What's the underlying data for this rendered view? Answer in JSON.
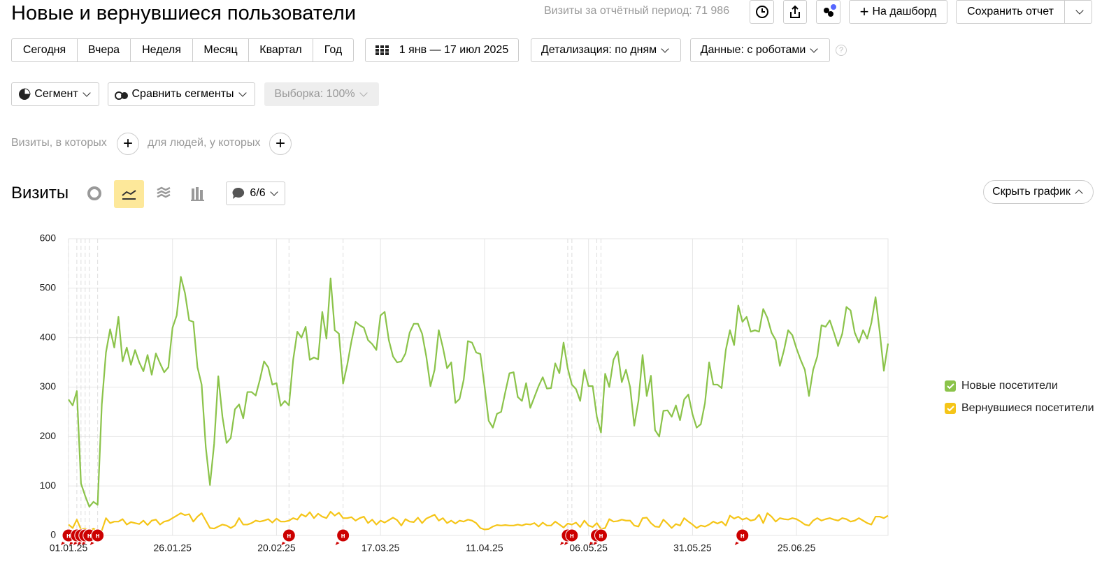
{
  "header": {
    "title": "Новые и вернувшиеся пользователи",
    "visits_total": "Визиты за отчётный период: 71 986",
    "add_dashboard": "На дашборд",
    "save_report": "Сохранить отчет"
  },
  "period_buttons": [
    "Сегодня",
    "Вчера",
    "Неделя",
    "Месяц",
    "Квартал",
    "Год"
  ],
  "date_range": "1 янв — 17 июл 2025",
  "detail": "Детализация: по дням",
  "data_mode": "Данные: с роботами",
  "segment": "Сегмент",
  "compare": "Сравнить сегменты",
  "sample": "Выборка: 100%",
  "filter": {
    "visits_where": "Визиты, в которых",
    "people_where": "для людей, у которых"
  },
  "metric_title": "Визиты",
  "notes_count": "6/6",
  "hide_chart": "Скрыть график",
  "chart_data": {
    "type": "line",
    "grid": true,
    "legend": "right",
    "xlim": [
      0,
      197
    ],
    "xticks": [
      {
        "value": 0,
        "label": "01.01.25"
      },
      {
        "value": 25,
        "label": "26.01.25"
      },
      {
        "value": 50,
        "label": "20.02.25"
      },
      {
        "value": 75,
        "label": "17.03.25"
      },
      {
        "value": 100,
        "label": "11.04.25"
      },
      {
        "value": 125,
        "label": "06.05.25"
      },
      {
        "value": 150,
        "label": "31.05.25"
      },
      {
        "value": 175,
        "label": "25.06.25"
      }
    ],
    "ylim": [
      0,
      600
    ],
    "yticks": [
      0,
      100,
      200,
      300,
      400,
      500,
      600
    ],
    "series": [
      {
        "name": "Новые посетители",
        "color": "#8bc34a",
        "values": [
          275,
          263,
          292,
          105,
          80,
          58,
          68,
          62,
          265,
          370,
          417,
          380,
          442,
          352,
          380,
          345,
          375,
          350,
          332,
          365,
          325,
          368,
          348,
          330,
          340,
          420,
          445,
          523,
          490,
          435,
          432,
          340,
          305,
          178,
          102,
          185,
          322,
          240,
          187,
          197,
          255,
          265,
          237,
          290,
          290,
          283,
          315,
          352,
          340,
          305,
          308,
          262,
          272,
          263,
          355,
          412,
          400,
          422,
          355,
          360,
          356,
          452,
          398,
          520,
          415,
          408,
          307,
          345,
          392,
          432,
          425,
          420,
          395,
          387,
          375,
          445,
          452,
          395,
          362,
          350,
          352,
          368,
          410,
          428,
          428,
          408,
          362,
          302,
          335,
          415,
          380,
          338,
          350,
          268,
          276,
          315,
          393,
          390,
          370,
          367,
          302,
          232,
          218,
          246,
          250,
          290,
          328,
          330,
          280,
          272,
          308,
          258,
          280,
          302,
          320,
          297,
          298,
          348,
          328,
          390,
          338,
          305,
          296,
          272,
          335,
          302,
          302,
          240,
          208,
          327,
          300,
          355,
          372,
          310,
          335,
          300,
          222,
          272,
          365,
          282,
          323,
          213,
          200,
          252,
          253,
          240,
          263,
          233,
          275,
          285,
          245,
          218,
          225,
          268,
          350,
          305,
          305,
          298,
          375,
          415,
          385,
          465,
          432,
          442,
          412,
          415,
          412,
          458,
          440,
          410,
          395,
          343,
          375,
          415,
          405,
          378,
          355,
          335,
          282,
          335,
          362,
          425,
          422,
          435,
          410,
          383,
          408,
          462,
          455,
          410,
          390,
          415,
          398,
          430,
          482,
          412,
          333,
          388
        ]
      },
      {
        "name": "Вернувшиеся посетители",
        "color": "#f5c518",
        "values": [
          22,
          15,
          32,
          12,
          14,
          8,
          14,
          8,
          10,
          35,
          25,
          28,
          28,
          33,
          22,
          27,
          25,
          23,
          30,
          21,
          30,
          32,
          22,
          28,
          30,
          35,
          40,
          45,
          41,
          43,
          28,
          38,
          45,
          30,
          15,
          14,
          18,
          22,
          20,
          15,
          20,
          35,
          22,
          22,
          25,
          30,
          28,
          30,
          33,
          26,
          34,
          28,
          28,
          30,
          35,
          32,
          43,
          38,
          47,
          35,
          44,
          38,
          35,
          48,
          40,
          46,
          35,
          35,
          37,
          30,
          35,
          38,
          25,
          32,
          22,
          30,
          26,
          31,
          36,
          31,
          20,
          33,
          28,
          27,
          36,
          25,
          34,
          38,
          42,
          30,
          35,
          25,
          30,
          24,
          30,
          28,
          32,
          30,
          25,
          15,
          12,
          13,
          18,
          21,
          20,
          21,
          20,
          20,
          22,
          20,
          23,
          22,
          25,
          18,
          26,
          20,
          20,
          28,
          22,
          16,
          24,
          22,
          26,
          17,
          30,
          20,
          17,
          25,
          13,
          15,
          33,
          28,
          29,
          32,
          30,
          30,
          20,
          18,
          35,
          36,
          25,
          18,
          17,
          32,
          24,
          15,
          23,
          20,
          35,
          28,
          22,
          15,
          20,
          18,
          22,
          28,
          24,
          28,
          20,
          40,
          34,
          38,
          32,
          35,
          30,
          32,
          42,
          25,
          45,
          38,
          28,
          35,
          33,
          32,
          35,
          33,
          28,
          22,
          20,
          30,
          35,
          30,
          33,
          35,
          32,
          30,
          35,
          33,
          28,
          30,
          35,
          30,
          25,
          22,
          38,
          38,
          35,
          40
        ]
      }
    ],
    "annotations": [
      {
        "x": 0,
        "label": "н"
      },
      {
        "x": 2,
        "label": "н"
      },
      {
        "x": 3,
        "label": "н"
      },
      {
        "x": 4,
        "label": "н"
      },
      {
        "x": 5,
        "label": "н"
      },
      {
        "x": 7,
        "label": "н"
      },
      {
        "x": 53,
        "label": "н"
      },
      {
        "x": 66,
        "label": "н"
      },
      {
        "x": 120,
        "label": "н"
      },
      {
        "x": 121,
        "label": "н"
      },
      {
        "x": 127,
        "label": "н"
      },
      {
        "x": 128,
        "label": "н"
      },
      {
        "x": 162,
        "label": "н"
      }
    ]
  }
}
